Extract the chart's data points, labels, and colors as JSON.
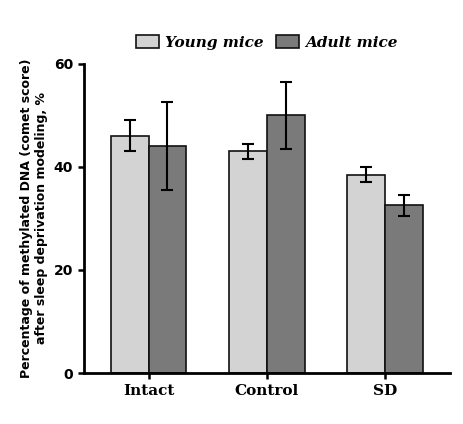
{
  "categories": [
    "Intact",
    "Control",
    "SD"
  ],
  "young_values": [
    46.0,
    43.0,
    38.5
  ],
  "adult_values": [
    44.0,
    50.0,
    32.5
  ],
  "young_errors": [
    3.0,
    1.5,
    1.5
  ],
  "adult_errors": [
    8.5,
    6.5,
    2.0
  ],
  "young_color": "#d3d3d3",
  "adult_color": "#7a7a7a",
  "young_label": "Young mice",
  "adult_label": "Adult mice",
  "ylabel": "Percentage of methylated DNA (comet score)\nafter sleep deprivation modeling, %",
  "ylim": [
    0,
    60
  ],
  "yticks": [
    0,
    20,
    40,
    60
  ],
  "bar_width": 0.32,
  "figsize": [
    4.64,
    4.24
  ],
  "dpi": 100,
  "edge_color": "#111111",
  "error_capsize": 4,
  "error_linewidth": 1.5,
  "error_color": "black"
}
